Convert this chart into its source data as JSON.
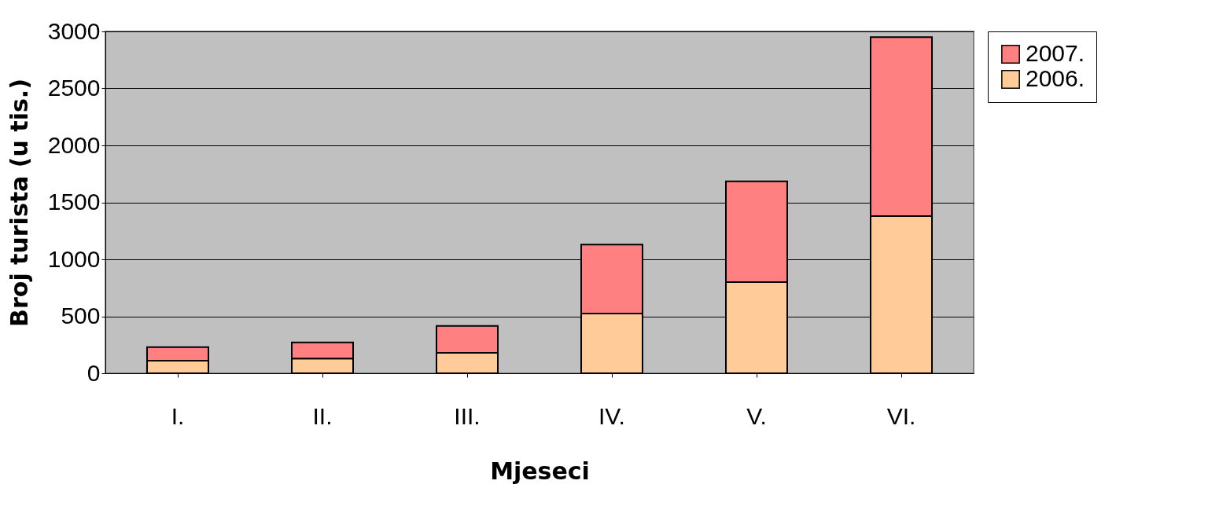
{
  "chart_data": {
    "type": "bar",
    "stacked": true,
    "xlabel": "Mjeseci",
    "ylabel": "Broj turista (u tis.)",
    "categories": [
      "I.",
      "II.",
      "III.",
      "IV.",
      "V.",
      "VI."
    ],
    "series": [
      {
        "name": "2006.",
        "color": "#ffcc99",
        "values": [
          110,
          130,
          180,
          525,
          800,
          1380
        ]
      },
      {
        "name": "2007.",
        "color": "#ff8080",
        "values": [
          120,
          140,
          235,
          605,
          885,
          1570
        ]
      }
    ],
    "ylim": [
      0,
      3000
    ],
    "yticks": [
      0,
      500,
      1000,
      1500,
      2000,
      2500,
      3000
    ],
    "grid": "y",
    "legend": "right"
  }
}
